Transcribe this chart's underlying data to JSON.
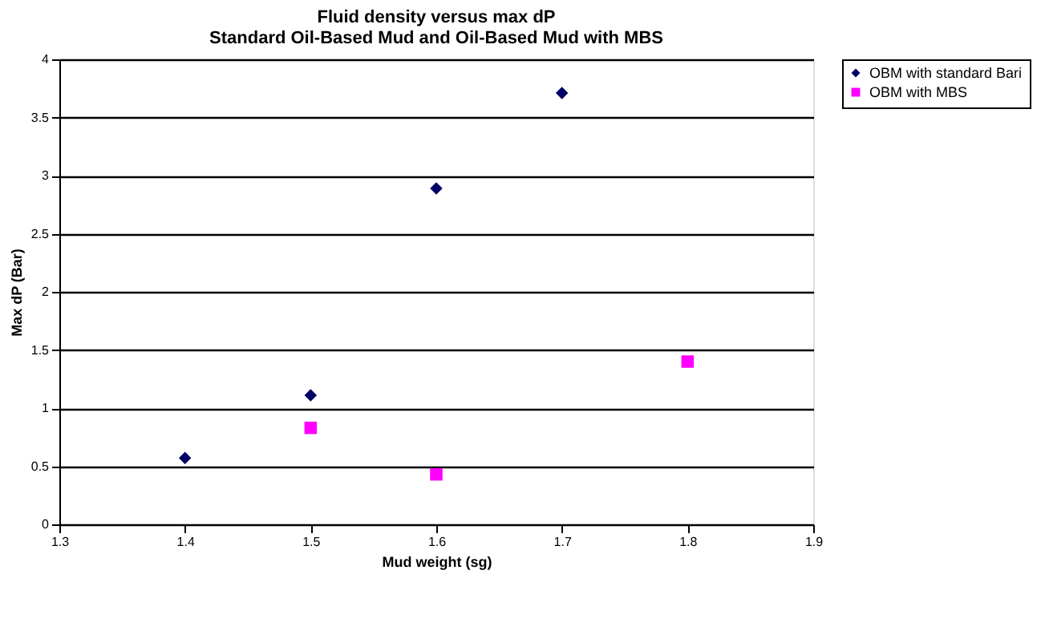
{
  "chart_data": {
    "type": "scatter",
    "title": [
      "Fluid density versus max dP",
      "Standard Oil-Based Mud and Oil-Based Mud with MBS"
    ],
    "xlabel": "Mud weight (sg)",
    "ylabel": "Max dP (Bar)",
    "series": [
      {
        "name": "OBM with standard Bari",
        "color": "#000066",
        "marker": "diamond",
        "x": [
          1.4,
          1.5,
          1.6,
          1.7
        ],
        "values": [
          0.57,
          1.11,
          2.89,
          3.71
        ]
      },
      {
        "name": "OBM with MBS",
        "color": "#ff00ff",
        "marker": "square",
        "x": [
          1.5,
          1.6,
          1.8
        ],
        "values": [
          0.83,
          0.43,
          1.4
        ]
      }
    ],
    "xlim": [
      1.3,
      1.9
    ],
    "xticks": [
      1.3,
      1.4,
      1.5,
      1.6,
      1.7,
      1.8,
      1.9
    ],
    "ylim": [
      0,
      4
    ],
    "yticks": [
      0,
      0.5,
      1,
      1.5,
      2,
      2.5,
      3,
      3.5,
      4
    ],
    "grid": "y",
    "legend": "right"
  }
}
